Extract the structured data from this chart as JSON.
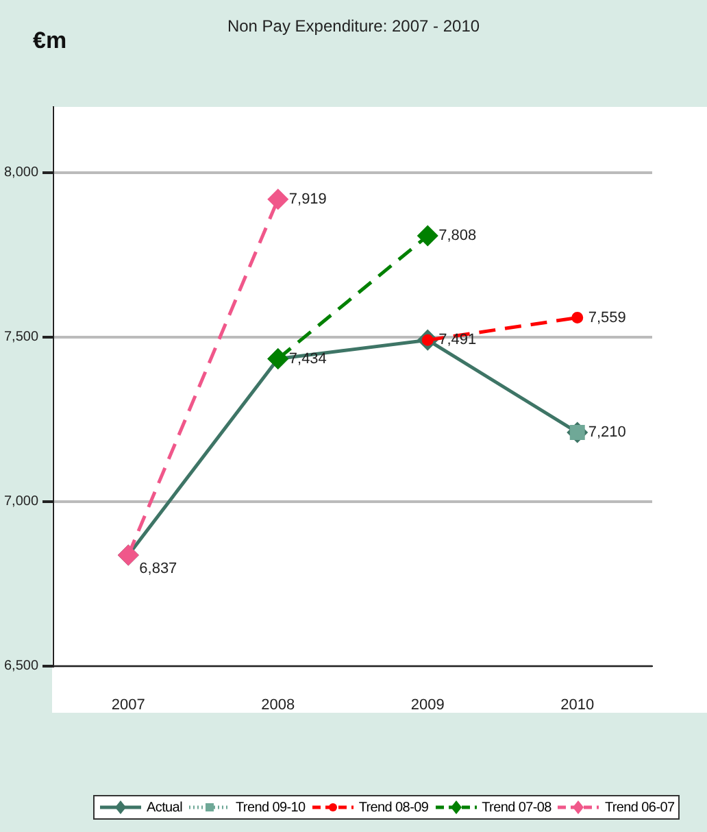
{
  "chart_data": {
    "type": "line",
    "title": "Non Pay Expenditure: 2007 - 2010",
    "ylabel": "€m",
    "categories": [
      "2007",
      "2008",
      "2009",
      "2010"
    ],
    "series": [
      {
        "name": "Actual",
        "color": "#3e7566",
        "values": [
          6837,
          7434,
          7491,
          7210
        ],
        "marker": "diamond",
        "line_style": "solid",
        "value_labels": [
          "6,837",
          "7,434",
          "7,491",
          "7,210"
        ]
      },
      {
        "name": "Trend 09-10",
        "color": "#6fa897",
        "values": [
          null,
          null,
          null,
          7210
        ],
        "marker": "square",
        "line_style": "dotted"
      },
      {
        "name": "Trend 08-09",
        "color": "#ff0000",
        "values": [
          null,
          null,
          7491,
          7559
        ],
        "marker": "circle",
        "line_style": "dashed",
        "value_labels": [
          null,
          null,
          null,
          "7,559"
        ]
      },
      {
        "name": "Trend 07-08",
        "color": "#008000",
        "values": [
          null,
          7434,
          7808,
          null
        ],
        "marker": "diamond",
        "line_style": "dashed",
        "value_labels": [
          null,
          null,
          "7,808",
          null
        ]
      },
      {
        "name": "Trend 06-07",
        "color": "#f0578a",
        "values": [
          6837,
          7919,
          null,
          null
        ],
        "marker": "diamond",
        "line_style": "dashed",
        "value_labels": [
          null,
          "7,919",
          null,
          null
        ]
      }
    ],
    "ylim": [
      6500,
      8200
    ],
    "yticks": [
      {
        "value": 6500,
        "label": "6,500"
      },
      {
        "value": 7000,
        "label": "7,000"
      },
      {
        "value": 7500,
        "label": "7,500"
      },
      {
        "value": 8000,
        "label": "8,000"
      }
    ],
    "grid": "y",
    "legend": "bottom"
  }
}
